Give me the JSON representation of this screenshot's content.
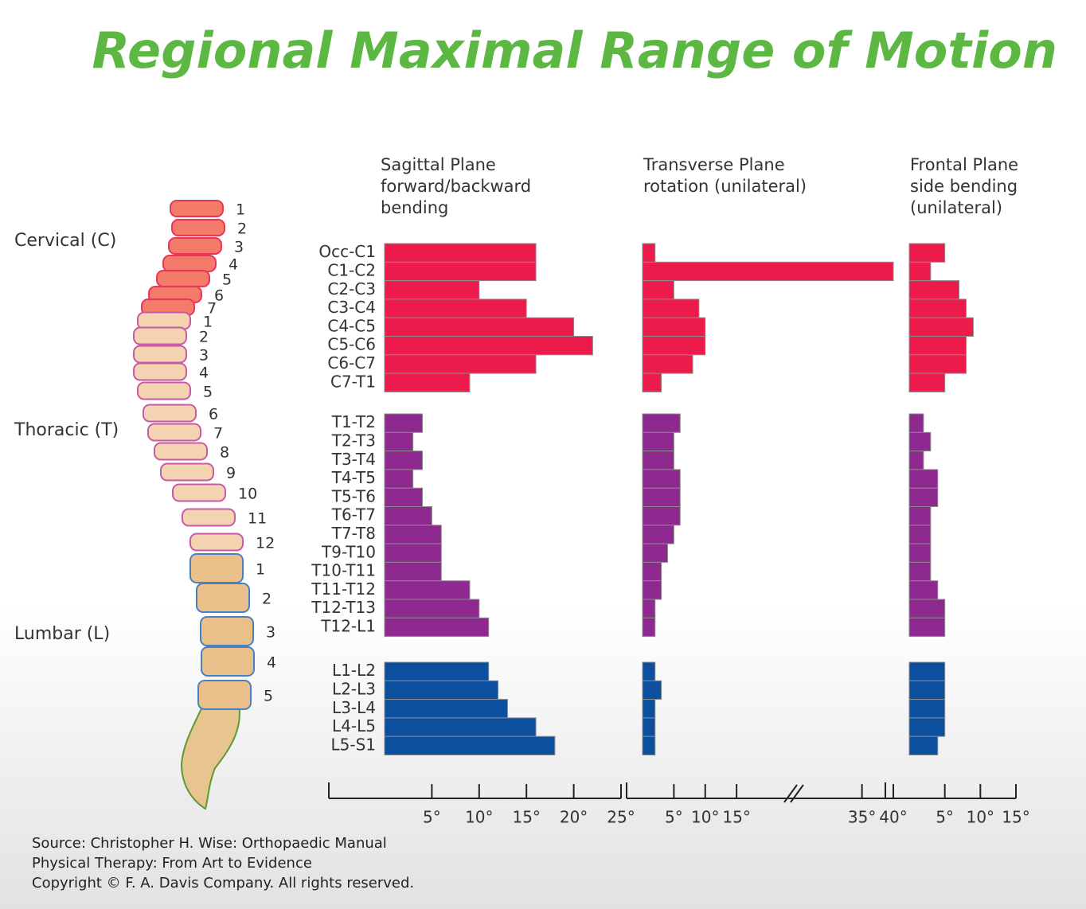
{
  "title": "Regional Maximal Range of Motion",
  "spine": {
    "regions": [
      {
        "label": "Cervical (C)",
        "numbers": [
          1,
          2,
          3,
          4,
          5,
          6,
          7
        ]
      },
      {
        "label": "Thoracic (T)",
        "numbers": [
          1,
          2,
          3,
          4,
          5,
          6,
          7,
          8,
          9,
          10,
          11,
          12
        ]
      },
      {
        "label": "Lumbar (L)",
        "numbers": [
          1,
          2,
          3,
          4,
          5
        ]
      }
    ]
  },
  "chart_data": {
    "type": "bar",
    "orientation": "horizontal",
    "groups": [
      {
        "color": "#ec1b4b",
        "categories": [
          "Occ-C1",
          "C1-C2",
          "C2-C3",
          "C3-C4",
          "C4-C5",
          "C5-C6",
          "C6-C7",
          "C7-T1"
        ]
      },
      {
        "color": "#8e2a8f",
        "categories": [
          "T1-T2",
          "T2-T3",
          "T3-T4",
          "T4-T5",
          "T5-T6",
          "T6-T7",
          "T7-T8",
          "T9-T10",
          "T10-T11",
          "T11-T12",
          "T12-T13",
          "T12-L1"
        ]
      },
      {
        "color": "#0b4f9e",
        "categories": [
          "L1-L2",
          "L2-L3",
          "L3-L4",
          "L4-L5",
          "L5-S1"
        ]
      }
    ],
    "panels": [
      {
        "title": [
          "Sagittal Plane",
          "forward/backward",
          "bending"
        ],
        "xlim": [
          0,
          25
        ],
        "xticks": [
          {
            "value": 5,
            "label": "5°"
          },
          {
            "value": 10,
            "label": "10°"
          },
          {
            "value": 15,
            "label": "15°"
          },
          {
            "value": 20,
            "label": "20°"
          },
          {
            "value": 25,
            "label": "25°"
          }
        ],
        "values": [
          [
            16,
            16,
            10,
            15,
            20,
            22,
            16,
            9
          ],
          [
            4,
            3,
            4,
            3,
            4,
            5,
            6,
            6,
            6,
            9,
            10,
            11
          ],
          [
            11,
            12,
            13,
            16,
            18
          ]
        ]
      },
      {
        "title": [
          "Transverse Plane",
          "rotation (unilateral)"
        ],
        "xlim": [
          0,
          40
        ],
        "xticks": [
          {
            "value": 5,
            "label": "5°"
          },
          {
            "value": 10,
            "label": "10°"
          },
          {
            "value": 15,
            "label": "15°"
          },
          {
            "value": 35,
            "label": "35°"
          },
          {
            "value": 40,
            "label": "40°"
          }
        ],
        "values": [
          [
            2,
            40,
            5,
            9,
            10,
            10,
            8,
            3
          ],
          [
            6,
            5,
            5,
            6,
            6,
            6,
            5,
            4,
            3,
            3,
            2,
            2
          ],
          [
            2,
            3,
            2,
            2,
            2
          ]
        ]
      },
      {
        "title": [
          "Frontal Plane",
          "side bending",
          "(unilateral)"
        ],
        "xlim": [
          0,
          15
        ],
        "xticks": [
          {
            "value": 5,
            "label": "5°"
          },
          {
            "value": 10,
            "label": "10°"
          },
          {
            "value": 15,
            "label": "15°"
          }
        ],
        "values": [
          [
            5,
            3,
            7,
            8,
            9,
            8,
            8,
            5
          ],
          [
            2,
            3,
            2,
            4,
            4,
            3,
            3,
            3,
            3,
            4,
            5,
            5
          ],
          [
            5,
            5,
            5,
            5,
            4
          ]
        ]
      }
    ]
  },
  "source": [
    "Source: Christopher H. Wise: Orthopaedic Manual",
    "Physical Therapy: From Art to Evidence",
    "Copyright © F. A. Davis Company. All rights reserved."
  ]
}
